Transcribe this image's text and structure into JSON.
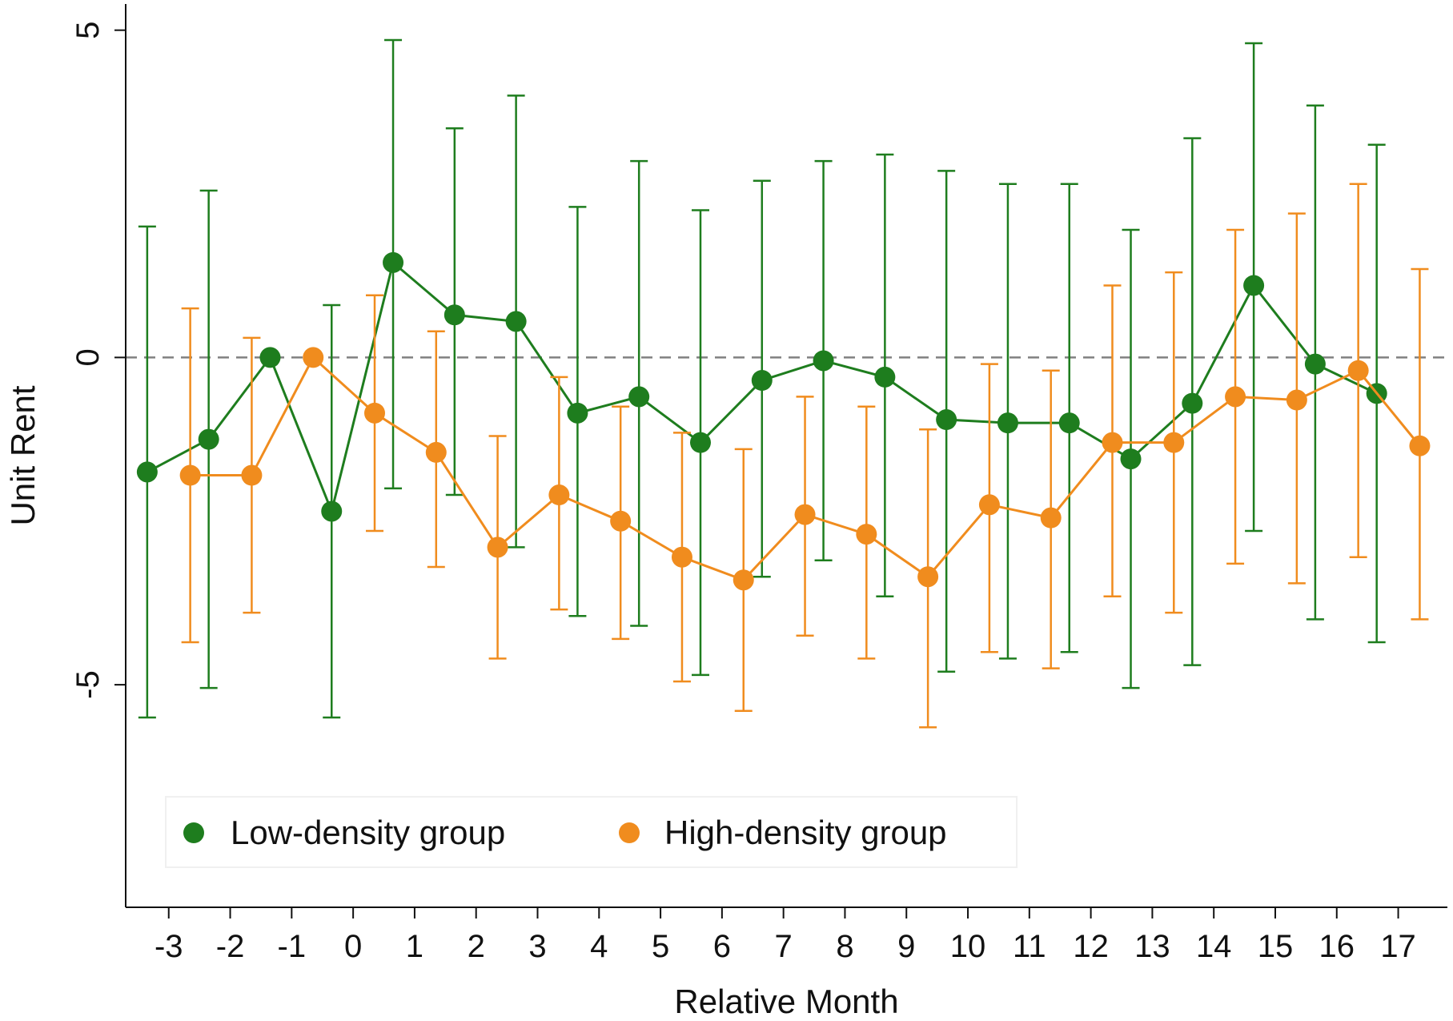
{
  "chart_data": {
    "type": "scatter",
    "title": "",
    "xlabel": "Relative Month",
    "ylabel": "Unit Rent",
    "x": [
      -3,
      -2,
      -1,
      0,
      1,
      2,
      3,
      4,
      5,
      6,
      7,
      8,
      9,
      10,
      11,
      12,
      13,
      14,
      15,
      16,
      17
    ],
    "x_tick_labels": [
      "-3",
      "-2",
      "-1",
      "0",
      "1",
      "2",
      "3",
      "4",
      "5",
      "6",
      "7",
      "8",
      "9",
      "10",
      "11",
      "12",
      "13",
      "14",
      "15",
      "16",
      "17"
    ],
    "y_ticks": [
      5,
      0,
      -5
    ],
    "y_tick_labels": [
      "5",
      "0",
      "-5"
    ],
    "xlim": [
      -3.7,
      17.8
    ],
    "ylim": [
      -8.4,
      5.4
    ],
    "reference_line": {
      "y": 0,
      "style": "dashed",
      "color": "#808080"
    },
    "grid": false,
    "legend_position": "bottom-left (inside)",
    "series": [
      {
        "name": "Low-density group",
        "color": "#1e7d1e",
        "offset": -0.35,
        "values": [
          -1.75,
          -1.25,
          0.0,
          -2.35,
          1.45,
          0.65,
          0.55,
          -0.85,
          -0.6,
          -1.3,
          -0.35,
          -0.05,
          -0.3,
          -0.95,
          -1.0,
          -1.0,
          -1.55,
          -0.7,
          1.1,
          -0.1,
          -0.55
        ],
        "ci_low": [
          -5.5,
          -5.05,
          0.0,
          -5.5,
          -2.0,
          -2.1,
          -2.9,
          -3.95,
          -4.1,
          -4.85,
          -3.35,
          -3.1,
          -3.65,
          -4.8,
          -4.6,
          -4.5,
          -5.05,
          -4.7,
          -2.65,
          -4.0,
          -4.35
        ],
        "ci_high": [
          2.0,
          2.55,
          0.0,
          0.8,
          4.85,
          3.5,
          4.0,
          2.3,
          3.0,
          2.25,
          2.7,
          3.0,
          3.1,
          2.85,
          2.65,
          2.65,
          1.95,
          3.35,
          4.8,
          3.85,
          3.25
        ]
      },
      {
        "name": "High-density group",
        "color": "#f08c1e",
        "offset": 0.35,
        "values": [
          -1.8,
          -1.8,
          0.0,
          -0.85,
          -1.45,
          -2.9,
          -2.1,
          -2.5,
          -3.05,
          -3.4,
          -2.4,
          -2.7,
          -3.35,
          -2.25,
          -2.45,
          -1.3,
          -1.3,
          -0.6,
          -0.65,
          -0.2,
          -1.35
        ],
        "ci_low": [
          -4.35,
          -3.9,
          0.0,
          -2.65,
          -3.2,
          -4.6,
          -3.85,
          -4.3,
          -4.95,
          -5.4,
          -4.25,
          -4.6,
          -5.65,
          -4.5,
          -4.75,
          -3.65,
          -3.9,
          -3.15,
          -3.45,
          -3.05,
          -4.0
        ],
        "ci_high": [
          0.75,
          0.3,
          0.0,
          0.95,
          0.4,
          -1.2,
          -0.3,
          -0.75,
          -1.15,
          -1.4,
          -0.6,
          -0.75,
          -1.1,
          -0.1,
          -0.2,
          1.1,
          1.3,
          1.95,
          2.2,
          2.65,
          1.35
        ]
      }
    ]
  }
}
